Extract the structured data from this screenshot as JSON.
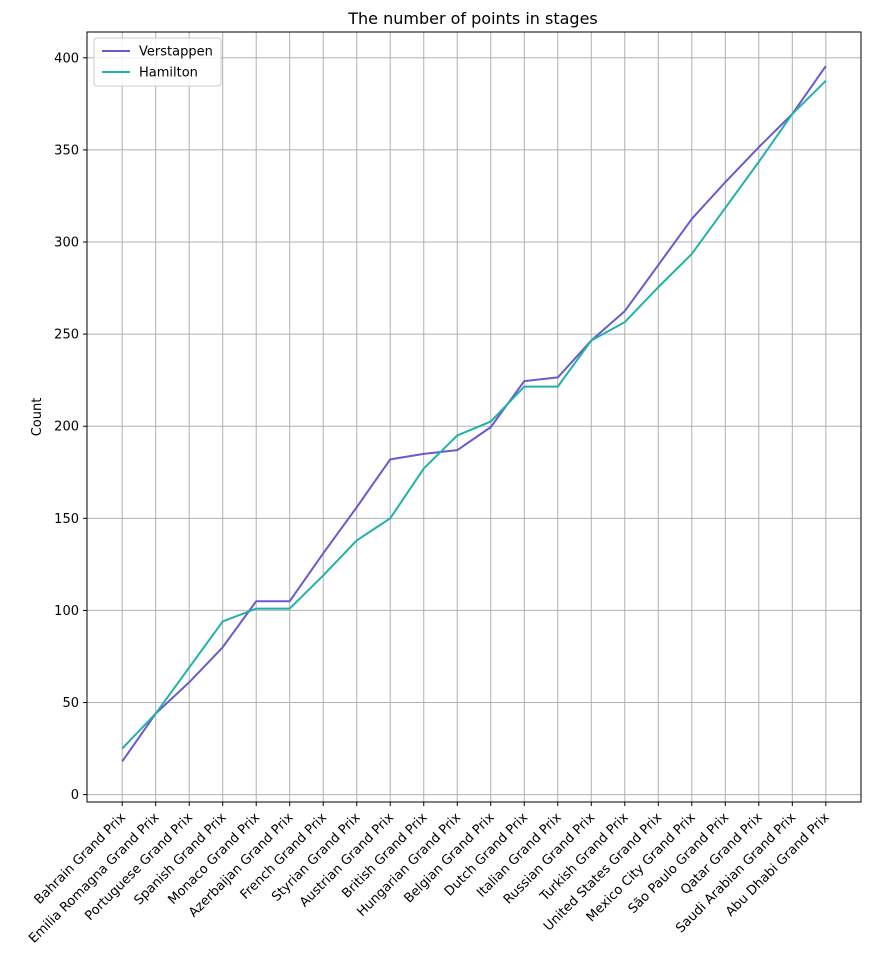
{
  "chart_data": {
    "type": "line",
    "title": "The number of points in stages",
    "xlabel": "",
    "ylabel": "Count",
    "categories": [
      "Bahrain Grand Prix",
      "Emilia Romagna Grand Prix",
      "Portuguese Grand Prix",
      "Spanish Grand Prix",
      "Monaco Grand Prix",
      "Azerbaijan Grand Prix",
      "French Grand Prix",
      "Styrian Grand Prix",
      "Austrian Grand Prix",
      "British Grand Prix",
      "Hungarian Grand Prix",
      "Belgian Grand Prix",
      "Dutch Grand Prix",
      "Italian Grand Prix",
      "Russian Grand Prix",
      "Turkish Grand Prix",
      "United States Grand Prix",
      "Mexico City Grand Prix",
      "São Paulo Grand Prix",
      "Qatar Grand Prix",
      "Saudi Arabian Grand Prix",
      "Abu Dhabi Grand Prix"
    ],
    "series": [
      {
        "name": "Verstappen",
        "color": "#6a5acd",
        "values": [
          18,
          44,
          61,
          80,
          105,
          105,
          131,
          156,
          182,
          185,
          187,
          199.5,
          224.5,
          226.5,
          246.5,
          262.5,
          287.5,
          312.5,
          332.5,
          351.5,
          369.5,
          395.5
        ]
      },
      {
        "name": "Hamilton",
        "color": "#20b2aa",
        "values": [
          25,
          44,
          69,
          94,
          101,
          101,
          119,
          138,
          150,
          177,
          195,
          202.5,
          221.5,
          221.5,
          246.5,
          256.5,
          275.5,
          293.5,
          318.5,
          343.5,
          369.5,
          387.5
        ]
      }
    ],
    "ylim": [
      -4,
      414
    ],
    "yticks": [
      0,
      50,
      100,
      150,
      200,
      250,
      300,
      350,
      400
    ],
    "grid": true,
    "legend_position": "top-left"
  }
}
